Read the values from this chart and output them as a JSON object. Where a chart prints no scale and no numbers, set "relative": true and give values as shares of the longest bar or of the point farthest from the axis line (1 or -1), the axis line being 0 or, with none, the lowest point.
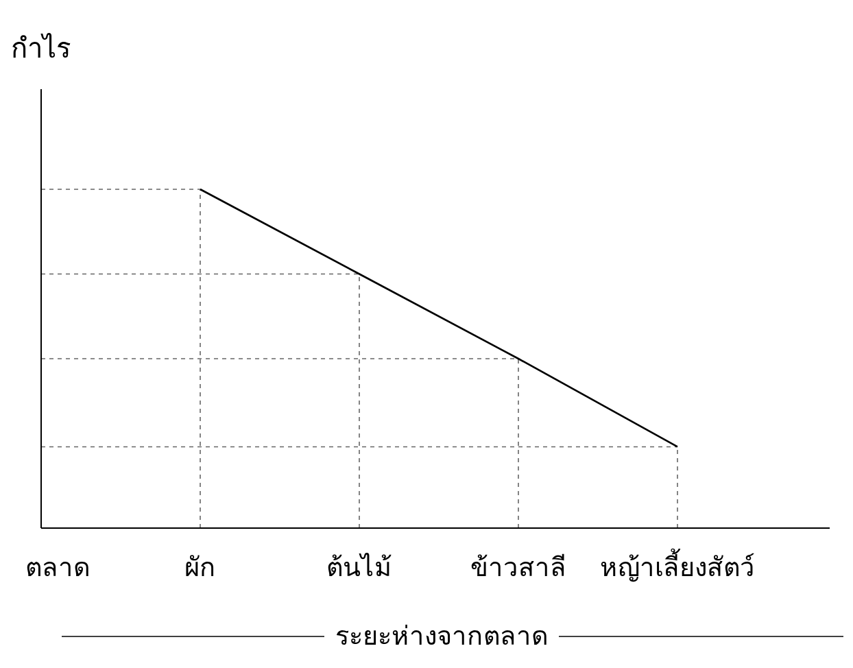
{
  "chart_data": {
    "type": "line",
    "ylabel": "กำไร",
    "xlabel": "ระยะห่างจากตลาด",
    "categories": [
      "ตลาด",
      "ผัก",
      "ต้นไม้",
      "ข้าวสาลี",
      "หญ้าเลี้ยงสัตว์"
    ],
    "series": [
      {
        "color": "#000000",
        "values": [
          null,
          1,
          0.75,
          0.5,
          0.24
        ]
      }
    ],
    "relative": true,
    "ref_lines": [
      {
        "axis": "y",
        "value": 1,
        "color": "#666666",
        "line_style": "dashed"
      },
      {
        "axis": "y",
        "value": 0.75,
        "color": "#666666",
        "line_style": "dashed"
      },
      {
        "axis": "y",
        "value": 0.5,
        "color": "#666666",
        "line_style": "dashed"
      },
      {
        "axis": "y",
        "value": 0.24,
        "color": "#666666",
        "line_style": "dashed"
      },
      {
        "axis": "x",
        "value": "ผัก",
        "color": "#666666",
        "line_style": "dashed"
      },
      {
        "axis": "x",
        "value": "ต้นไม้",
        "color": "#666666",
        "line_style": "dashed"
      },
      {
        "axis": "x",
        "value": "ข้าวสาลี",
        "color": "#666666",
        "line_style": "dashed"
      },
      {
        "axis": "x",
        "value": "หญ้าเลี้ยงสัตว์",
        "color": "#666666",
        "line_style": "dashed"
      }
    ]
  }
}
